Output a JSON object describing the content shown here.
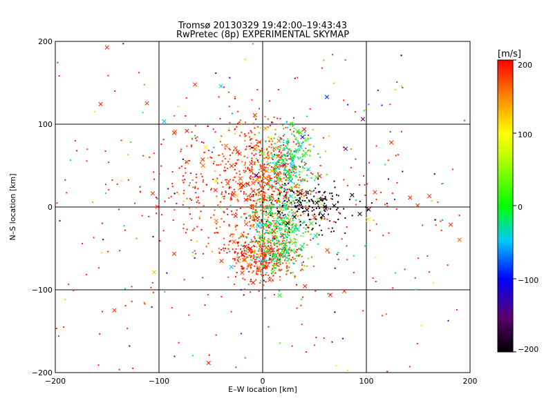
{
  "chart_data": {
    "type": "scatter",
    "title": "Tromsø 20130329 19:42:00–19:43:43",
    "subtitle": "RwPretec (8p) EXPERIMENTAL SKYMAP",
    "xlabel": "E–W location [km]",
    "ylabel": "N–S location [km]",
    "xlim": [
      -200,
      200
    ],
    "ylim": [
      -200,
      200
    ],
    "x_ticks": [
      "−200",
      "−100",
      "0",
      "100",
      "200"
    ],
    "y_ticks": [
      "200",
      "100",
      "0",
      "−100",
      "−200"
    ],
    "grid": true,
    "colorbar": {
      "label": "[m/s]",
      "range": [
        -200,
        200
      ],
      "ticks": [
        "200",
        "100",
        "0",
        "−100",
        "−200"
      ]
    },
    "series": [
      {
        "marker": "dot",
        "points": [
          [
            0,
            0
          ]
        ]
      },
      {
        "marker": "cross",
        "points": [
          [
            0,
            0
          ]
        ]
      }
    ]
  }
}
